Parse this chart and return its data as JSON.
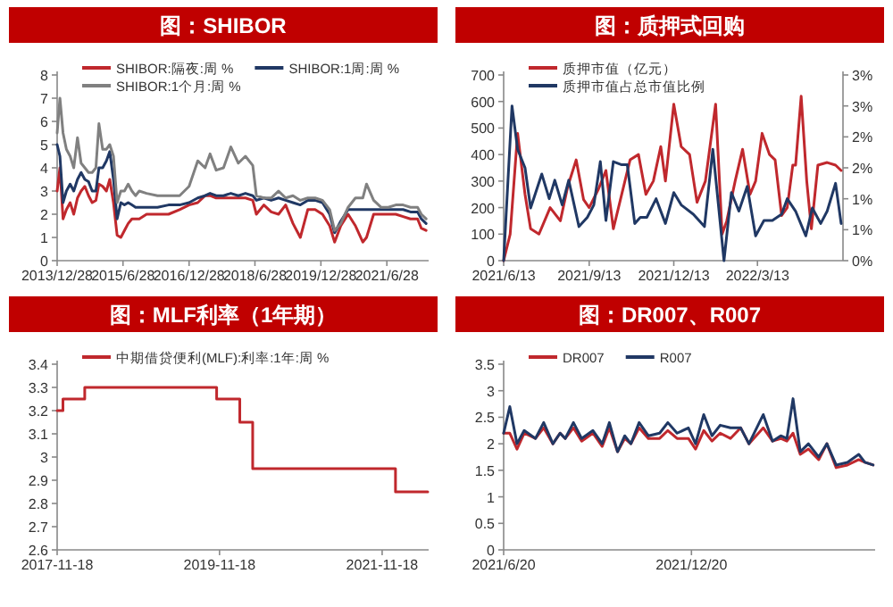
{
  "chart_data": [
    {
      "type": "line",
      "title": "图：SHIBOR",
      "legend": "top",
      "xlim": [
        "2013-12-28",
        "2022-06-10"
      ],
      "ylim": [
        0,
        8
      ],
      "yticks": [
        0,
        1,
        2,
        3,
        4,
        5,
        6,
        7,
        8
      ],
      "xticks": [
        {
          "value": "2013-12-28",
          "label": "2013/12/28"
        },
        {
          "value": "2015-06-28",
          "label": "2015/6/28"
        },
        {
          "value": "2016-12-28",
          "label": "2016/12/28"
        },
        {
          "value": "2018-06-28",
          "label": "2018/6/28"
        },
        {
          "value": "2019-12-28",
          "label": "2019/12/28"
        },
        {
          "value": "2021-06-28",
          "label": "2021/6/28"
        }
      ],
      "x": [
        "2013-12-28",
        "2014-01-20",
        "2014-02-15",
        "2014-03-15",
        "2014-04-15",
        "2014-05-15",
        "2014-06-15",
        "2014-07-15",
        "2014-08-15",
        "2014-09-15",
        "2014-10-15",
        "2014-11-15",
        "2014-12-10",
        "2015-01-10",
        "2015-02-10",
        "2015-03-10",
        "2015-04-10",
        "2015-05-10",
        "2015-06-10",
        "2015-07-10",
        "2015-08-10",
        "2015-09-10",
        "2015-10-10",
        "2015-11-10",
        "2016-01-10",
        "2016-04-10",
        "2016-07-10",
        "2016-10-10",
        "2016-12-28",
        "2017-03-10",
        "2017-05-10",
        "2017-06-20",
        "2017-08-10",
        "2017-10-10",
        "2017-12-10",
        "2018-02-10",
        "2018-04-10",
        "2018-06-10",
        "2018-07-10",
        "2018-09-10",
        "2018-11-10",
        "2019-01-10",
        "2019-03-10",
        "2019-05-10",
        "2019-07-10",
        "2019-09-10",
        "2019-11-10",
        "2020-01-10",
        "2020-03-10",
        "2020-04-20",
        "2020-06-10",
        "2020-08-10",
        "2020-10-10",
        "2020-12-10",
        "2021-01-10",
        "2021-03-10",
        "2021-05-10",
        "2021-07-10",
        "2021-09-10",
        "2021-11-10",
        "2022-01-10",
        "2022-03-10",
        "2022-04-10",
        "2022-05-20"
      ],
      "series": [
        {
          "name": "SHIBOR:隔夜:周 %",
          "color": "#c0282d",
          "values": [
            3.0,
            4.0,
            1.8,
            2.2,
            2.5,
            2.0,
            2.7,
            3.0,
            3.2,
            2.8,
            2.5,
            2.6,
            3.3,
            3.2,
            3.0,
            3.5,
            2.5,
            1.1,
            1.0,
            1.3,
            1.6,
            1.8,
            1.8,
            1.8,
            2.0,
            2.0,
            2.0,
            2.2,
            2.4,
            2.5,
            2.8,
            2.8,
            2.7,
            2.7,
            2.7,
            2.7,
            2.7,
            2.6,
            2.0,
            2.4,
            2.1,
            2.0,
            2.4,
            1.6,
            1.0,
            2.2,
            2.2,
            2.0,
            1.5,
            0.8,
            1.5,
            2.0,
            1.5,
            0.8,
            1.0,
            2.0,
            2.0,
            2.0,
            2.0,
            1.9,
            1.8,
            1.8,
            1.4,
            1.3
          ]
        },
        {
          "name": "SHIBOR:1周:周 %",
          "color": "#203864",
          "values": [
            5.0,
            4.5,
            2.5,
            3.0,
            3.3,
            3.0,
            3.5,
            3.8,
            3.5,
            3.4,
            3.0,
            3.0,
            4.0,
            4.0,
            4.3,
            4.7,
            3.5,
            1.8,
            2.5,
            2.4,
            2.5,
            2.4,
            2.3,
            2.3,
            2.3,
            2.3,
            2.4,
            2.4,
            2.5,
            2.7,
            2.8,
            2.9,
            2.8,
            2.8,
            2.9,
            2.8,
            2.9,
            2.8,
            2.6,
            2.7,
            2.6,
            2.7,
            2.6,
            2.5,
            2.4,
            2.6,
            2.6,
            2.5,
            2.0,
            1.2,
            1.7,
            2.2,
            2.2,
            2.2,
            2.2,
            2.2,
            2.2,
            2.2,
            2.2,
            2.2,
            2.1,
            2.1,
            1.8,
            1.6
          ]
        },
        {
          "name": "SHIBOR:1个月:周 %",
          "color": "#808080",
          "values": [
            5.5,
            7.0,
            5.5,
            4.8,
            4.5,
            4.0,
            5.3,
            4.2,
            4.0,
            3.8,
            3.8,
            4.0,
            5.9,
            4.8,
            4.8,
            5.0,
            4.5,
            2.5,
            3.0,
            3.0,
            3.3,
            3.0,
            2.8,
            3.0,
            2.9,
            2.8,
            2.8,
            2.8,
            3.2,
            4.3,
            4.0,
            4.6,
            3.9,
            4.0,
            4.9,
            4.2,
            4.5,
            4.1,
            2.8,
            2.7,
            2.7,
            3.0,
            2.7,
            2.8,
            2.6,
            2.7,
            2.7,
            2.6,
            2.2,
            1.3,
            1.6,
            2.3,
            2.7,
            2.7,
            3.3,
            2.6,
            2.3,
            2.3,
            2.4,
            2.4,
            2.3,
            2.3,
            2.0,
            1.8
          ]
        }
      ]
    },
    {
      "type": "line",
      "title": "图：质押式回购",
      "legend": "top",
      "xlim": [
        "2021-06-13",
        "2022-06-13"
      ],
      "ylim": [
        0,
        700
      ],
      "yticks": [
        0,
        100,
        200,
        300,
        400,
        500,
        600,
        700
      ],
      "y2lim": [
        0,
        3
      ],
      "y2ticks": [
        {
          "value": 0,
          "label": "0%"
        },
        {
          "value": 0.5,
          "label": "1%"
        },
        {
          "value": 1,
          "label": "1%"
        },
        {
          "value": 1.5,
          "label": "2%"
        },
        {
          "value": 2,
          "label": "2%"
        },
        {
          "value": 2.5,
          "label": "3%"
        },
        {
          "value": 3,
          "label": "3%"
        }
      ],
      "xticks": [
        {
          "value": "2021-06-13",
          "label": "2021/6/13"
        },
        {
          "value": "2021-09-13",
          "label": "2021/9/13"
        },
        {
          "value": "2021-12-13",
          "label": "2021/12/13"
        },
        {
          "value": "2022-03-13",
          "label": "2022/3/13"
        }
      ],
      "series": [
        {
          "name": "质押市值（亿元）",
          "color": "#c0282d",
          "x": [
            "2021-06-13",
            "2021-06-20",
            "2021-06-28",
            "2021-07-06",
            "2021-07-12",
            "2021-07-21",
            "2021-08-02",
            "2021-08-13",
            "2021-08-21",
            "2021-08-30",
            "2021-09-07",
            "2021-09-13",
            "2021-09-23",
            "2021-10-01",
            "2021-10-09",
            "2021-10-18",
            "2021-10-27",
            "2021-11-05",
            "2021-11-13",
            "2021-11-21",
            "2021-11-29",
            "2021-12-04",
            "2021-12-13",
            "2021-12-21",
            "2021-12-30",
            "2022-01-07",
            "2022-01-16",
            "2022-01-27",
            "2022-02-03",
            "2022-02-08",
            "2022-02-17",
            "2022-02-25",
            "2022-03-05",
            "2022-03-11",
            "2022-03-18",
            "2022-03-26",
            "2022-04-01",
            "2022-04-08",
            "2022-04-14",
            "2022-04-20",
            "2022-04-23",
            "2022-04-29",
            "2022-05-05",
            "2022-05-10",
            "2022-05-17",
            "2022-05-27",
            "2022-06-05",
            "2022-06-11"
          ],
          "values": [
            0,
            100,
            480,
            250,
            120,
            100,
            200,
            150,
            280,
            380,
            230,
            200,
            270,
            340,
            120,
            250,
            380,
            400,
            250,
            300,
            430,
            300,
            590,
            430,
            400,
            220,
            300,
            590,
            100,
            150,
            300,
            420,
            250,
            300,
            480,
            400,
            380,
            170,
            200,
            360,
            360,
            620,
            300,
            120,
            360,
            370,
            360,
            340
          ]
        },
        {
          "name": "质押市值占总市值比例",
          "color": "#203864",
          "axis": "y2",
          "x": [
            "2021-06-13",
            "2021-06-22",
            "2021-06-28",
            "2021-07-06",
            "2021-07-12",
            "2021-07-24",
            "2021-08-01",
            "2021-08-07",
            "2021-08-15",
            "2021-08-22",
            "2021-09-02",
            "2021-09-11",
            "2021-09-18",
            "2021-09-25",
            "2021-10-01",
            "2021-10-09",
            "2021-10-18",
            "2021-10-24",
            "2021-11-01",
            "2021-11-07",
            "2021-11-14",
            "2021-11-24",
            "2021-12-04",
            "2021-12-13",
            "2021-12-21",
            "2022-01-03",
            "2022-01-15",
            "2022-01-24",
            "2022-02-05",
            "2022-02-13",
            "2022-02-21",
            "2022-03-02",
            "2022-03-11",
            "2022-03-20",
            "2022-03-29",
            "2022-04-08",
            "2022-04-14",
            "2022-04-23",
            "2022-05-04",
            "2022-05-11",
            "2022-05-20",
            "2022-05-27",
            "2022-06-05",
            "2022-06-11"
          ],
          "values": [
            0,
            2.5,
            1.8,
            1.5,
            0.85,
            1.4,
            1.0,
            1.3,
            0.9,
            1.3,
            0.55,
            0.7,
            0.9,
            1.6,
            0.65,
            1.6,
            1.55,
            1.55,
            0.6,
            0.7,
            0.7,
            1.0,
            0.6,
            1.1,
            0.9,
            0.75,
            0.55,
            1.8,
            0,
            1.1,
            0.8,
            1.2,
            0.4,
            0.65,
            0.65,
            0.75,
            1.0,
            0.8,
            0.4,
            0.85,
            0.6,
            0.8,
            1.25,
            0.6
          ]
        }
      ]
    },
    {
      "type": "step",
      "title": "图：MLF利率（1年期）",
      "legend": "top",
      "xlim": [
        "2017-11-18",
        "2022-06-15"
      ],
      "ylim": [
        2.6,
        3.4
      ],
      "yticks": [
        2.6,
        2.7,
        2.8,
        2.9,
        3,
        3.1,
        3.2,
        3.3,
        3.4
      ],
      "xticks": [
        {
          "value": "2017-11-18",
          "label": "2017-11-18"
        },
        {
          "value": "2019-11-18",
          "label": "2019-11-18"
        },
        {
          "value": "2021-11-18",
          "label": "2021-11-18"
        }
      ],
      "x": [
        "2017-11-18",
        "2017-12-14",
        "2018-03-22",
        "2019-11-05",
        "2020-02-17",
        "2020-04-15",
        "2022-01-17",
        "2022-06-11"
      ],
      "series": [
        {
          "name": "中期借贷便利(MLF):利率:1年:周 %",
          "color": "#c0282d",
          "values": [
            3.2,
            3.25,
            3.3,
            3.25,
            3.15,
            2.95,
            2.85,
            2.85
          ]
        }
      ]
    },
    {
      "type": "line",
      "title": "图：DR007、R007",
      "legend": "top",
      "xlim": [
        "2021-06-20",
        "2022-06-17"
      ],
      "ylim": [
        0,
        3.5
      ],
      "yticks": [
        0,
        0.5,
        1,
        1.5,
        2,
        2.5,
        3,
        3.5
      ],
      "xticks": [
        {
          "value": "2021-06-20",
          "label": "2021/6/20"
        },
        {
          "value": "2021-12-20",
          "label": "2021/12/20"
        }
      ],
      "x": [
        "2021-06-20",
        "2021-06-26",
        "2021-07-03",
        "2021-07-10",
        "2021-07-21",
        "2021-07-29",
        "2021-08-07",
        "2021-08-14",
        "2021-08-19",
        "2021-08-27",
        "2021-09-04",
        "2021-09-15",
        "2021-09-24",
        "2021-10-01",
        "2021-10-09",
        "2021-10-16",
        "2021-10-22",
        "2021-10-30",
        "2021-11-08",
        "2021-11-19",
        "2021-11-27",
        "2021-12-06",
        "2021-12-17",
        "2021-12-24",
        "2022-01-01",
        "2022-01-09",
        "2022-01-17",
        "2022-01-27",
        "2022-02-06",
        "2022-02-14",
        "2022-02-28",
        "2022-03-09",
        "2022-03-17",
        "2022-03-23",
        "2022-03-29",
        "2022-04-05",
        "2022-04-13",
        "2022-04-23",
        "2022-05-01",
        "2022-05-10",
        "2022-05-21",
        "2022-06-01",
        "2022-06-07",
        "2022-06-15"
      ],
      "series": [
        {
          "name": "DR007",
          "color": "#c0282d",
          "values": [
            2.2,
            2.2,
            1.9,
            2.2,
            2.1,
            2.3,
            2.0,
            2.2,
            2.1,
            2.3,
            2.05,
            2.2,
            1.95,
            2.3,
            1.85,
            2.1,
            2.0,
            2.3,
            2.1,
            2.1,
            2.25,
            2.1,
            2.1,
            1.9,
            2.25,
            2.05,
            2.2,
            2.1,
            2.3,
            2.0,
            2.3,
            2.05,
            2.1,
            2.05,
            2.2,
            1.8,
            1.9,
            1.7,
            2.0,
            1.55,
            1.6,
            1.7,
            1.65,
            1.6
          ]
        },
        {
          "name": "R007",
          "color": "#203864",
          "values": [
            2.2,
            2.7,
            2.0,
            2.25,
            2.1,
            2.4,
            2.0,
            2.2,
            2.1,
            2.4,
            2.1,
            2.25,
            2.0,
            2.4,
            1.85,
            2.15,
            2.0,
            2.4,
            2.15,
            2.2,
            2.4,
            2.2,
            2.3,
            2.0,
            2.55,
            2.15,
            2.35,
            2.3,
            2.3,
            2.0,
            2.55,
            2.05,
            2.15,
            2.1,
            2.85,
            1.85,
            2.0,
            1.75,
            2.0,
            1.6,
            1.65,
            1.8,
            1.65,
            1.6
          ]
        }
      ]
    }
  ]
}
